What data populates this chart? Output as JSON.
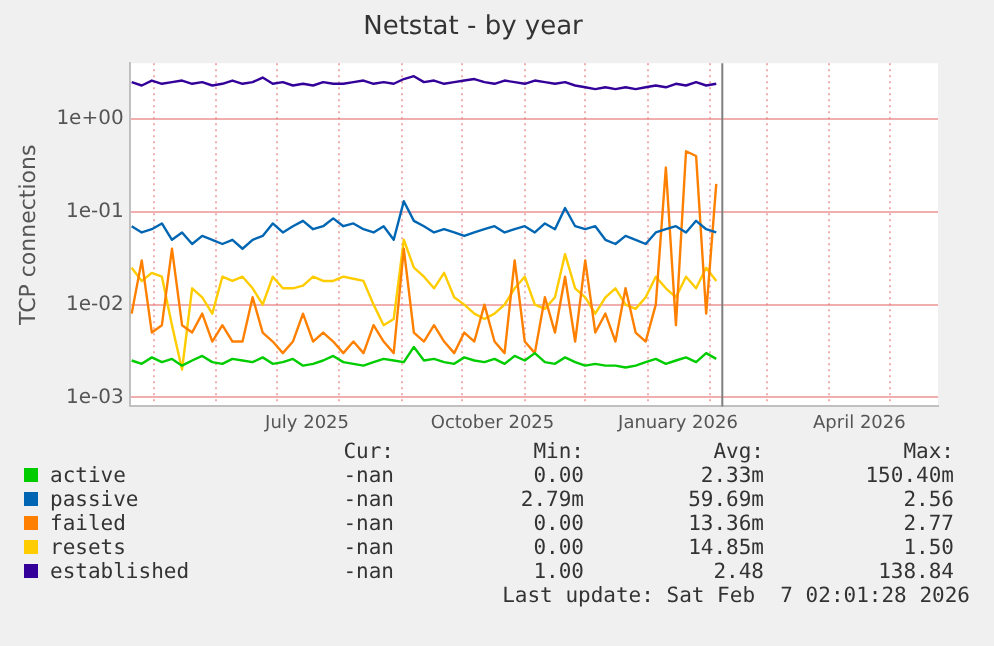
{
  "chart_data": {
    "type": "line",
    "title": "Netstat - by year",
    "ylabel": "TCP connections",
    "log": "y",
    "grid": true,
    "legend": "bottom",
    "marker": "none",
    "line_style": "solid",
    "x": [
      "2025-04-20",
      "2025-04-25",
      "2025-04-30",
      "2025-05-05",
      "2025-05-10",
      "2025-05-15",
      "2025-05-20",
      "2025-05-25",
      "2025-05-30",
      "2025-06-04",
      "2025-06-09",
      "2025-06-14",
      "2025-06-19",
      "2025-06-24",
      "2025-06-29",
      "2025-07-04",
      "2025-07-09",
      "2025-07-14",
      "2025-07-19",
      "2025-07-24",
      "2025-07-29",
      "2025-08-03",
      "2025-08-08",
      "2025-08-13",
      "2025-08-18",
      "2025-08-23",
      "2025-08-28",
      "2025-09-02",
      "2025-09-07",
      "2025-09-12",
      "2025-09-17",
      "2025-09-22",
      "2025-09-27",
      "2025-10-02",
      "2025-10-07",
      "2025-10-12",
      "2025-10-17",
      "2025-10-22",
      "2025-10-27",
      "2025-11-01",
      "2025-11-06",
      "2025-11-11",
      "2025-11-16",
      "2025-11-21",
      "2025-11-26",
      "2025-12-01",
      "2025-12-06",
      "2025-12-11",
      "2025-12-16",
      "2025-12-21",
      "2025-12-26",
      "2025-12-31",
      "2026-01-05",
      "2026-01-10",
      "2026-01-15",
      "2026-01-20",
      "2026-01-25",
      "2026-01-30",
      "2026-02-04"
    ],
    "xlim": [
      "2025-04-19",
      "2026-05-25"
    ],
    "xticks": [
      {
        "value": "2025-05-01",
        "label": null
      },
      {
        "value": "2025-06-01",
        "label": null
      },
      {
        "value": "2025-07-01",
        "label": null
      },
      {
        "value": "2025-07-16",
        "label": "July 2025"
      },
      {
        "value": "2025-08-01",
        "label": null
      },
      {
        "value": "2025-09-01",
        "label": null
      },
      {
        "value": "2025-10-01",
        "label": null
      },
      {
        "value": "2025-10-16",
        "label": "October 2025"
      },
      {
        "value": "2025-11-01",
        "label": null
      },
      {
        "value": "2025-12-01",
        "label": null
      },
      {
        "value": "2026-01-01",
        "label": null
      },
      {
        "value": "2026-01-16",
        "label": "January 2026"
      },
      {
        "value": "2026-02-01",
        "label": null
      },
      {
        "value": "2026-03-01",
        "label": null
      },
      {
        "value": "2026-04-01",
        "label": null
      },
      {
        "value": "2026-04-16",
        "label": "April 2026"
      },
      {
        "value": "2026-05-01",
        "label": null
      }
    ],
    "ylim": [
      0.0008,
      4
    ],
    "yticks": [
      {
        "value": 0.001,
        "label": "1e-03"
      },
      {
        "value": 0.01,
        "label": "1e-02"
      },
      {
        "value": 0.1,
        "label": "1e-01"
      },
      {
        "value": 1,
        "label": "1e+00"
      }
    ],
    "ref_lines": [
      {
        "axis": "x",
        "value": "2026-02-07",
        "color": "#808080",
        "line_style": "solid"
      }
    ],
    "series": [
      {
        "name": "active",
        "color": "#00cc00",
        "values": [
          0.0025,
          0.0023,
          0.0027,
          0.0024,
          0.0026,
          0.0022,
          0.0025,
          0.0028,
          0.0024,
          0.0023,
          0.0026,
          0.0025,
          0.0024,
          0.0027,
          0.0023,
          0.0024,
          0.0026,
          0.0022,
          0.0023,
          0.0025,
          0.0028,
          0.0024,
          0.0023,
          0.0022,
          0.0024,
          0.0026,
          0.0025,
          0.0024,
          0.0035,
          0.0025,
          0.0026,
          0.0024,
          0.0023,
          0.0027,
          0.0025,
          0.0024,
          0.0026,
          0.0023,
          0.0028,
          0.0025,
          0.003,
          0.0024,
          0.0023,
          0.0027,
          0.0024,
          0.0022,
          0.0023,
          0.0022,
          0.0022,
          0.0021,
          0.0022,
          0.0024,
          0.0026,
          0.0023,
          0.0025,
          0.0027,
          0.0024,
          0.003,
          0.0026
        ]
      },
      {
        "name": "passive",
        "color": "#0066b3",
        "values": [
          0.07,
          0.06,
          0.065,
          0.075,
          0.05,
          0.06,
          0.045,
          0.055,
          0.05,
          0.045,
          0.05,
          0.04,
          0.05,
          0.055,
          0.075,
          0.06,
          0.07,
          0.08,
          0.065,
          0.07,
          0.085,
          0.07,
          0.075,
          0.065,
          0.06,
          0.07,
          0.05,
          0.13,
          0.08,
          0.07,
          0.06,
          0.065,
          0.06,
          0.055,
          0.06,
          0.065,
          0.07,
          0.06,
          0.065,
          0.07,
          0.06,
          0.075,
          0.065,
          0.11,
          0.07,
          0.065,
          0.07,
          0.05,
          0.045,
          0.055,
          0.05,
          0.045,
          0.06,
          0.065,
          0.07,
          0.06,
          0.08,
          0.065,
          0.06
        ]
      },
      {
        "name": "failed",
        "color": "#ff8000",
        "values": [
          0.008,
          0.03,
          0.005,
          0.006,
          0.04,
          0.006,
          0.005,
          0.008,
          0.004,
          0.006,
          0.004,
          0.004,
          0.012,
          0.005,
          0.004,
          0.003,
          0.004,
          0.008,
          0.004,
          0.005,
          0.004,
          0.003,
          0.004,
          0.003,
          0.006,
          0.004,
          0.003,
          0.04,
          0.005,
          0.004,
          0.006,
          0.004,
          0.003,
          0.005,
          0.004,
          0.01,
          0.004,
          0.003,
          0.03,
          0.004,
          0.003,
          0.012,
          0.005,
          0.02,
          0.004,
          0.03,
          0.005,
          0.008,
          0.004,
          0.015,
          0.005,
          0.004,
          0.01,
          0.3,
          0.006,
          0.45,
          0.4,
          0.008,
          0.2
        ]
      },
      {
        "name": "resets",
        "color": "#ffcc00",
        "values": [
          0.025,
          0.018,
          0.022,
          0.02,
          0.006,
          0.002,
          0.015,
          0.012,
          0.008,
          0.02,
          0.018,
          0.02,
          0.015,
          0.01,
          0.02,
          0.015,
          0.015,
          0.016,
          0.02,
          0.018,
          0.018,
          0.02,
          0.019,
          0.018,
          0.01,
          0.006,
          0.007,
          0.05,
          0.025,
          0.02,
          0.015,
          0.022,
          0.012,
          0.01,
          0.008,
          0.007,
          0.008,
          0.01,
          0.015,
          0.02,
          0.01,
          0.009,
          0.012,
          0.035,
          0.015,
          0.012,
          0.008,
          0.012,
          0.015,
          0.01,
          0.009,
          0.012,
          0.02,
          0.015,
          0.012,
          0.02,
          0.015,
          0.025,
          0.018
        ]
      },
      {
        "name": "established",
        "color": "#330099",
        "values": [
          2.5,
          2.3,
          2.6,
          2.4,
          2.5,
          2.6,
          2.4,
          2.5,
          2.3,
          2.4,
          2.6,
          2.4,
          2.5,
          2.8,
          2.4,
          2.5,
          2.3,
          2.4,
          2.3,
          2.5,
          2.4,
          2.4,
          2.5,
          2.6,
          2.4,
          2.5,
          2.4,
          2.7,
          2.9,
          2.5,
          2.6,
          2.4,
          2.5,
          2.6,
          2.7,
          2.5,
          2.4,
          2.6,
          2.5,
          2.4,
          2.6,
          2.5,
          2.4,
          2.5,
          2.3,
          2.2,
          2.1,
          2.2,
          2.1,
          2.2,
          2.1,
          2.2,
          2.3,
          2.2,
          2.4,
          2.3,
          2.5,
          2.3,
          2.4
        ]
      }
    ],
    "annotations": [
      "Cur:",
      "Min:",
      "Avg:",
      "Max:",
      "-nan",
      "0.00",
      "2.33m",
      "150.40m",
      "-nan",
      "2.79m",
      "59.69m",
      "2.56",
      "-nan",
      "0.00",
      "13.36m",
      "2.77",
      "-nan",
      "0.00",
      "14.85m",
      "1.50",
      "-nan",
      "1.00",
      "2.48",
      "138.84",
      "Last update: Sat Feb  7 02:01:28 2026"
    ]
  }
}
